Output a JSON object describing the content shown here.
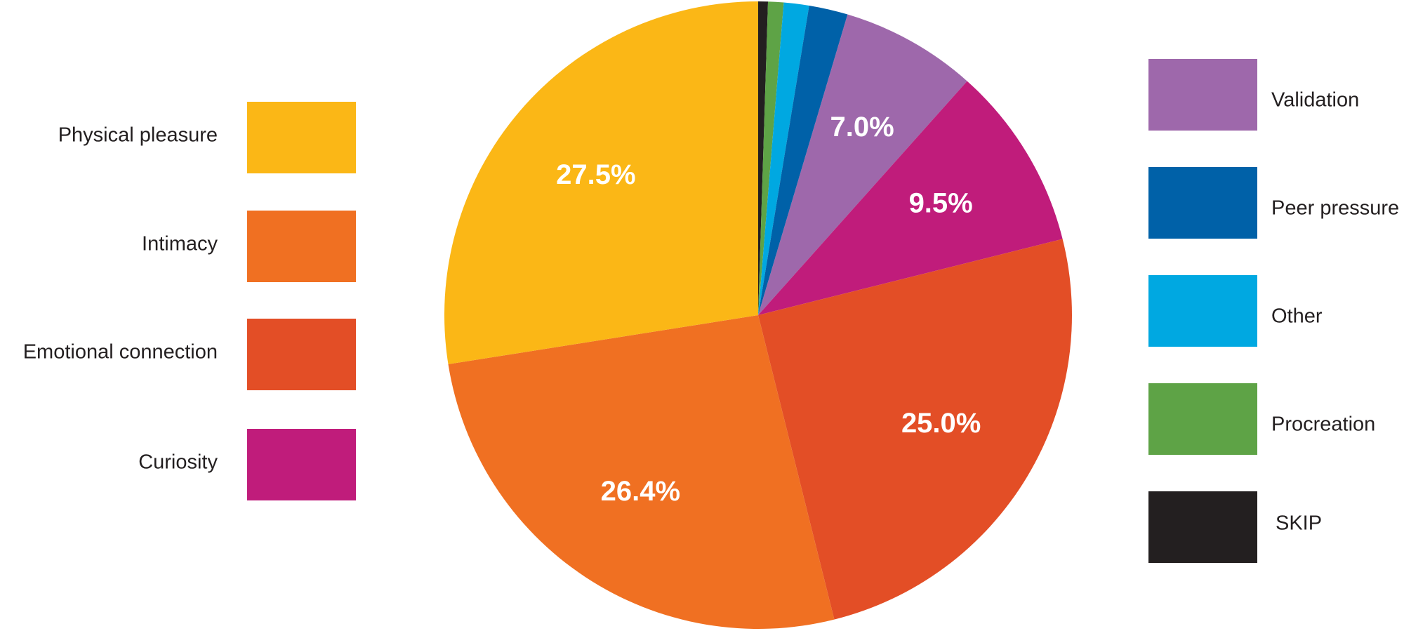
{
  "chart_data": {
    "type": "pie",
    "categories": [
      "SKIP",
      "Procreation",
      "Other",
      "Peer pressure",
      "Validation",
      "Curiosity",
      "Emotional connection",
      "Intimacy",
      "Physical pleasure"
    ],
    "values": [
      0.5,
      0.8,
      1.3,
      2.0,
      7.0,
      9.5,
      25.0,
      26.4,
      27.5
    ],
    "value_labels": [
      null,
      null,
      null,
      null,
      "7.0%",
      "9.5%",
      "25.0%",
      "26.4%",
      "27.5%"
    ],
    "colors": [
      "#231f20",
      "#5ea346",
      "#00a8e1",
      "#0061a8",
      "#9e68ab",
      "#c01c7b",
      "#e34e26",
      "#f07022",
      "#fbb716"
    ]
  }
}
